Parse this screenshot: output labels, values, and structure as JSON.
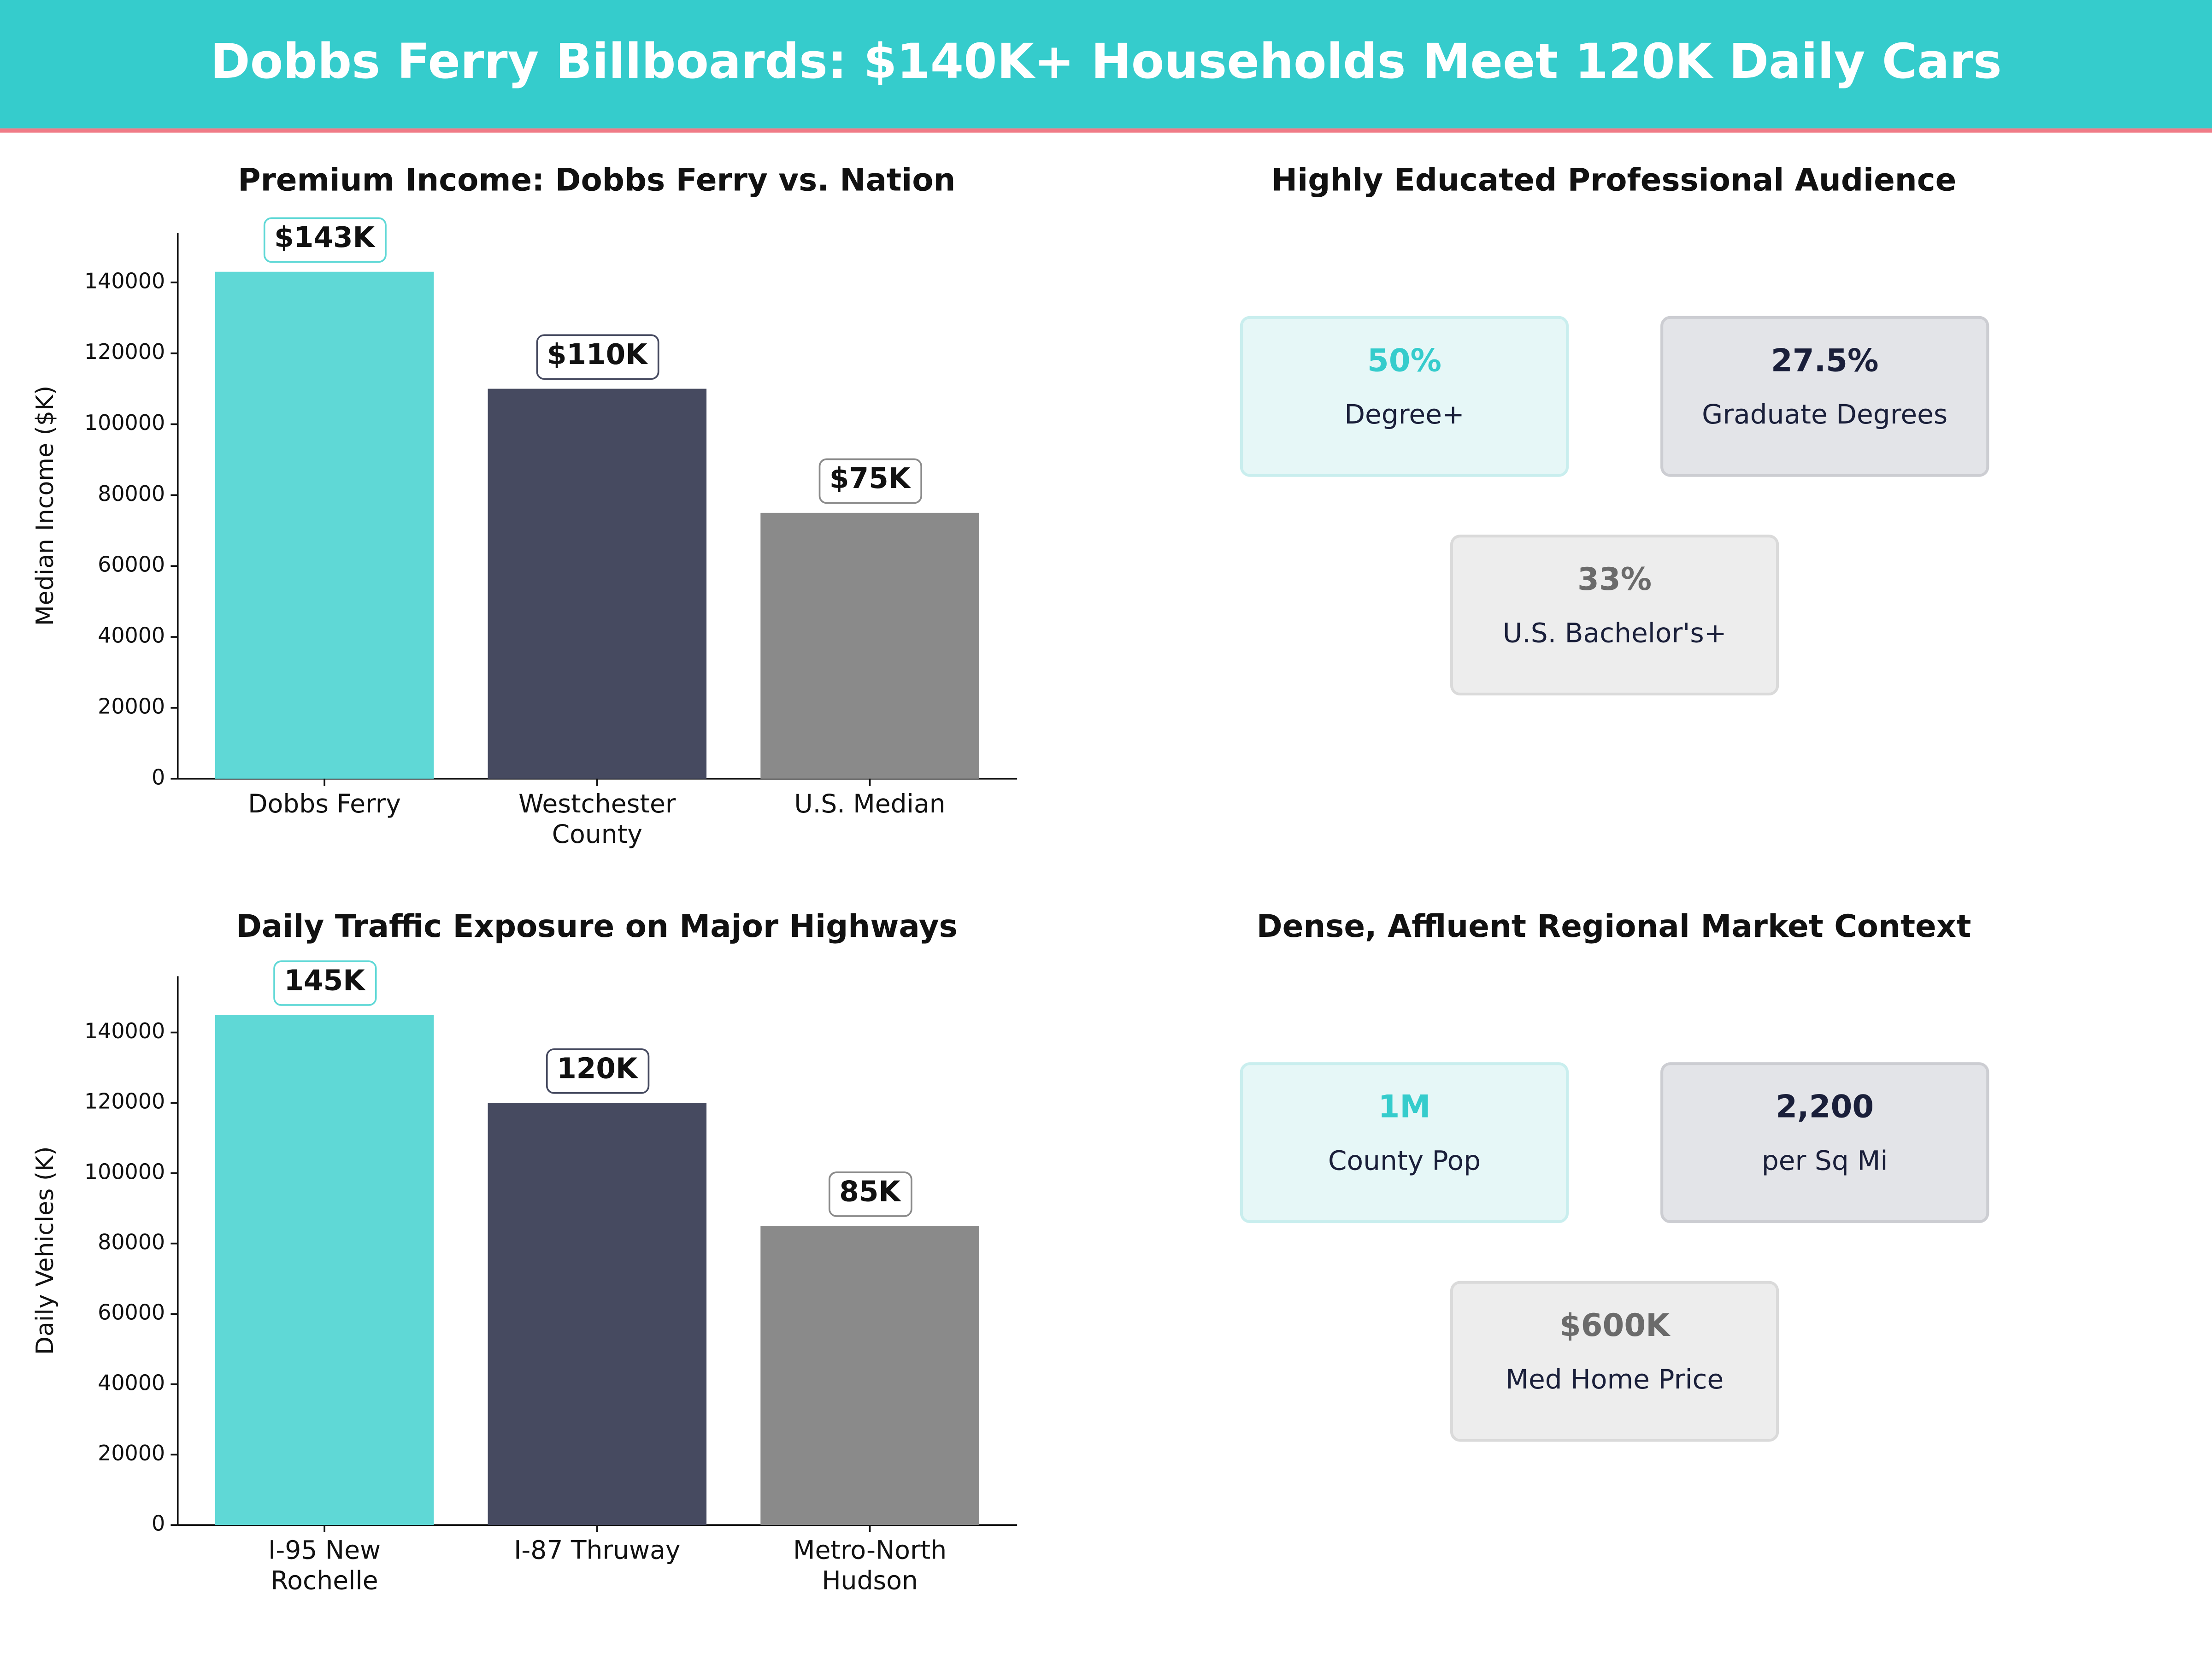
{
  "header": {
    "title": "Dobbs Ferry Billboards: $140K+ Households Meet 120K Daily Cars"
  },
  "chart_data": [
    {
      "type": "bar",
      "title": "Premium Income: Dobbs Ferry vs. Nation",
      "ylabel": "Median Income ($K)",
      "categories": [
        "Dobbs Ferry",
        "Westchester\nCounty",
        "U.S. Median"
      ],
      "values": [
        143000,
        110000,
        75000
      ],
      "value_labels": [
        "$143K",
        "$110K",
        "$75K"
      ],
      "colors": [
        "#5fd8d6",
        "#464a60",
        "#8a8a8a"
      ],
      "ylim": [
        0,
        154000
      ],
      "yticks": [
        0,
        20000,
        40000,
        60000,
        80000,
        100000,
        120000,
        140000
      ]
    },
    {
      "type": "bar",
      "title": "Daily Traffic Exposure on Major Highways",
      "ylabel": "Daily Vehicles (K)",
      "categories": [
        "I-95 New\nRochelle",
        "I-87 Thruway",
        "Metro-North\nHudson"
      ],
      "values": [
        145000,
        120000,
        85000
      ],
      "value_labels": [
        "145K",
        "120K",
        "85K"
      ],
      "colors": [
        "#5fd8d6",
        "#464a60",
        "#8a8a8a"
      ],
      "ylim": [
        0,
        156000
      ],
      "yticks": [
        0,
        20000,
        40000,
        60000,
        80000,
        100000,
        120000,
        140000
      ]
    }
  ],
  "panels": [
    {
      "title": "Highly Educated Professional Audience",
      "cards": [
        {
          "value": "50%",
          "label": "Degree+"
        },
        {
          "value": "27.5%",
          "label": "Graduate Degrees"
        },
        {
          "value": "33%",
          "label": "U.S. Bachelor's+"
        }
      ]
    },
    {
      "title": "Dense, Affluent Regional Market Context",
      "cards": [
        {
          "value": "1M",
          "label": "County Pop"
        },
        {
          "value": "2,200",
          "label": "per Sq Mi"
        },
        {
          "value": "$600K",
          "label": "Med Home Price"
        }
      ]
    }
  ]
}
